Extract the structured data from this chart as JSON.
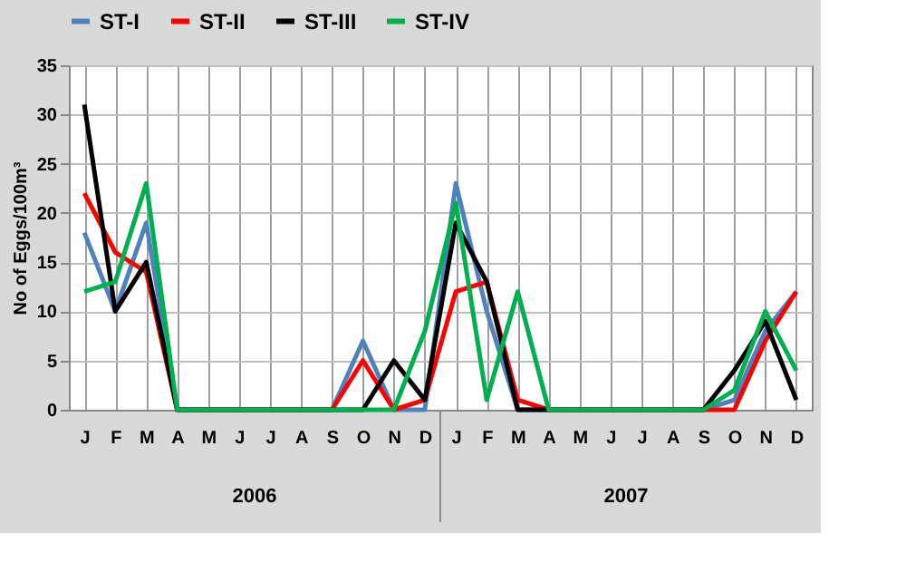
{
  "chart_data": {
    "type": "line",
    "ylabel": "No of Eggs/100m³",
    "categories": [
      "J",
      "F",
      "M",
      "A",
      "M",
      "J",
      "J",
      "A",
      "S",
      "O",
      "N",
      "D",
      "J",
      "F",
      "M",
      "A",
      "M",
      "J",
      "J",
      "A",
      "S",
      "O",
      "N",
      "D"
    ],
    "series": [
      {
        "name": "ST-I",
        "color": "#4f81bd",
        "values": [
          18,
          10,
          19,
          0,
          0,
          0,
          0,
          0,
          0,
          7,
          0,
          0,
          23,
          10,
          0,
          0,
          0,
          0,
          0,
          0,
          0,
          1,
          8,
          12
        ]
      },
      {
        "name": "ST-II",
        "color": "#ff0000",
        "values": [
          22,
          16,
          14,
          0,
          0,
          0,
          0,
          0,
          0,
          5,
          0,
          1,
          12,
          13,
          1,
          0,
          0,
          0,
          0,
          0,
          0,
          0,
          7,
          12
        ]
      },
      {
        "name": "ST-III",
        "color": "#000000",
        "values": [
          31,
          10,
          15,
          0,
          0,
          0,
          0,
          0,
          0,
          0,
          5,
          1,
          19,
          13,
          0,
          0,
          0,
          0,
          0,
          0,
          0,
          4,
          9,
          1
        ]
      },
      {
        "name": "ST-IV",
        "color": "#00b050",
        "values": [
          12,
          13,
          23,
          0,
          0,
          0,
          0,
          0,
          0,
          0,
          0,
          8,
          21,
          1,
          12,
          0,
          0,
          0,
          0,
          0,
          0,
          2,
          10,
          4
        ]
      }
    ],
    "ylim": [
      0,
      35
    ],
    "yticks": [
      0,
      5,
      10,
      15,
      20,
      25,
      30,
      35
    ],
    "grid": true,
    "legend": "top",
    "line_style": "solid",
    "marker": "none",
    "annotations": [
      "2006",
      "2007"
    ]
  }
}
